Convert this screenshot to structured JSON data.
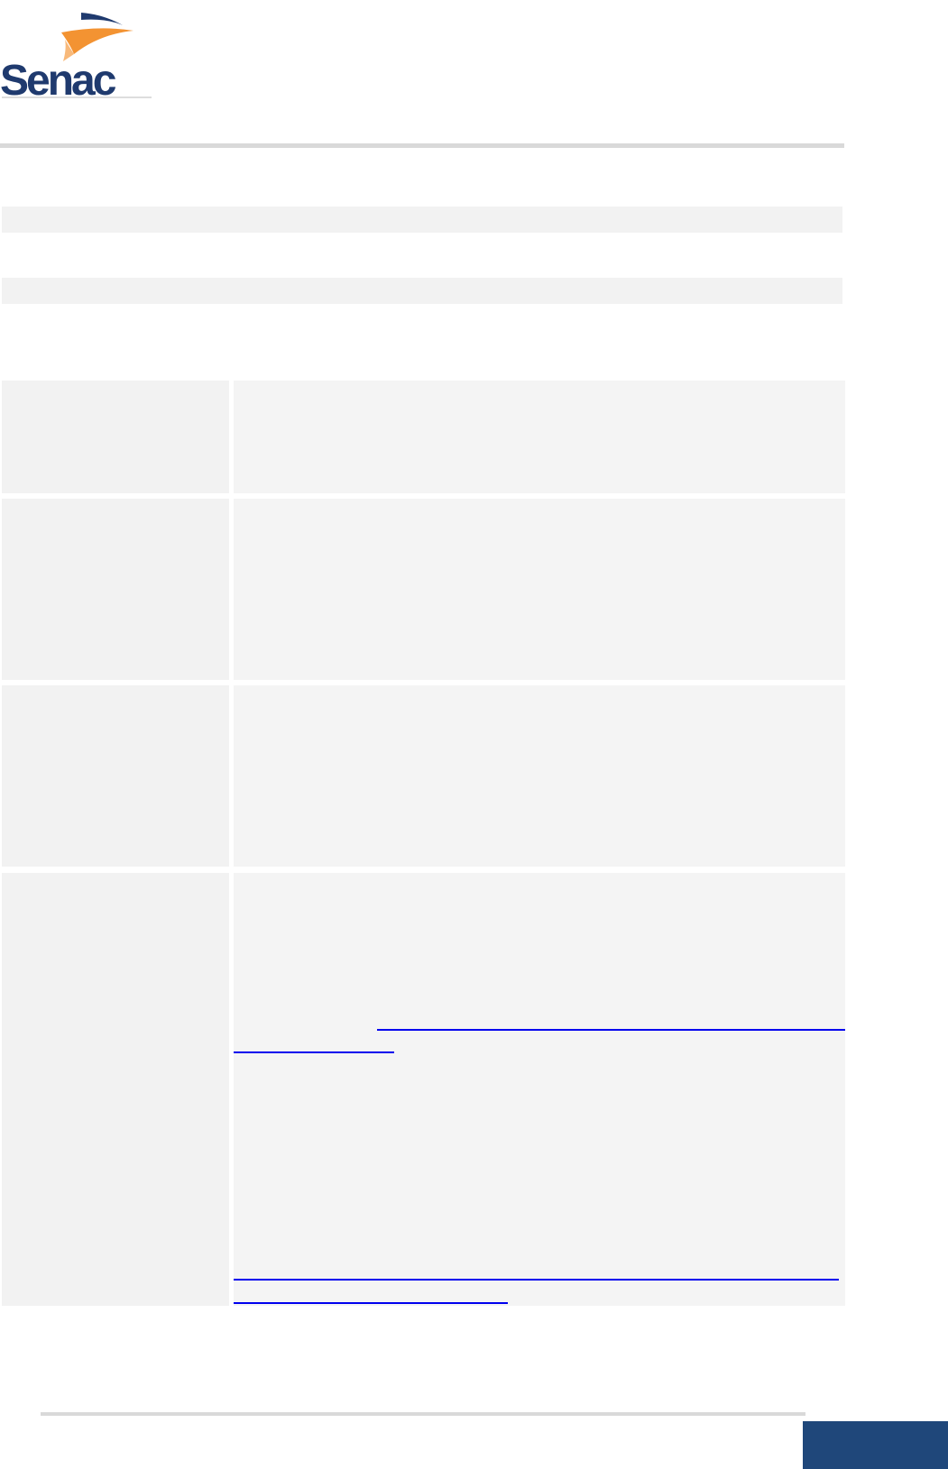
{
  "header": {
    "logo": {
      "text": "Senac",
      "colors": {
        "navy": "#1f3a6e",
        "orange": "#f39332",
        "light_orange": "#f8b97a"
      }
    }
  },
  "colors": {
    "rule": "#d9d9d9",
    "shade": "#f2f2f2",
    "link": "#0000ee",
    "footer_block": "#1f477a"
  },
  "table": {
    "rows": [
      {
        "label": "",
        "content": ""
      },
      {
        "label": "",
        "content": ""
      },
      {
        "label": "",
        "content": ""
      },
      {
        "label": "",
        "content": "",
        "links": [
          "",
          ""
        ]
      }
    ]
  }
}
